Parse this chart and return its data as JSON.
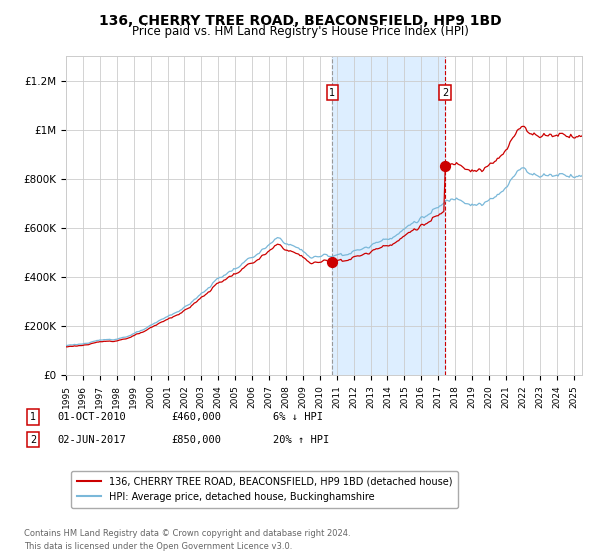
{
  "title": "136, CHERRY TREE ROAD, BEACONSFIELD, HP9 1BD",
  "subtitle": "Price paid vs. HM Land Registry's House Price Index (HPI)",
  "title_fontsize": 10,
  "subtitle_fontsize": 8.5,
  "ylim": [
    0,
    1300000
  ],
  "yticks": [
    0,
    200000,
    400000,
    600000,
    800000,
    1000000,
    1200000
  ],
  "ytick_labels": [
    "£0",
    "£200K",
    "£400K",
    "£600K",
    "£800K",
    "£1M",
    "£1.2M"
  ],
  "background_color": "#ffffff",
  "plot_bg_color": "#ffffff",
  "grid_color": "#cccccc",
  "hpi_line_color": "#7ab8d9",
  "price_line_color": "#cc0000",
  "sale1_date_num": 2010.75,
  "sale1_price": 460000,
  "sale1_label": "1",
  "sale2_date_num": 2017.42,
  "sale2_price": 850000,
  "sale2_label": "2",
  "shading_color": "#ddeeff",
  "legend_entry1": "136, CHERRY TREE ROAD, BEACONSFIELD, HP9 1BD (detached house)",
  "legend_entry2": "HPI: Average price, detached house, Buckinghamshire",
  "row1_date": "01-OCT-2010",
  "row1_price": "£460,000",
  "row1_pct": "6% ↓ HPI",
  "row2_date": "02-JUN-2017",
  "row2_price": "£850,000",
  "row2_pct": "20% ↑ HPI",
  "footer": "Contains HM Land Registry data © Crown copyright and database right 2024.\nThis data is licensed under the Open Government Licence v3.0.",
  "xstart": 1995,
  "xend": 2025.5
}
